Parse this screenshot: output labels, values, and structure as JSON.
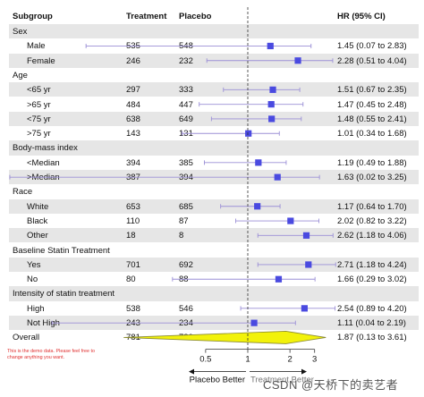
{
  "headers": {
    "subgroup": "Subgroup",
    "treatment": "Treatment",
    "placebo": "Placebo",
    "hr": "HR (95% CI)"
  },
  "chart_data": {
    "type": "forest",
    "xticks": [
      0.5,
      1,
      2,
      3
    ],
    "xlim": [
      0.27,
      4.2
    ],
    "reference_line": 1,
    "arrow_left_label": "Placebo Better",
    "arrow_right_label": "Treatment Better",
    "rows": [
      {
        "type": "group",
        "label": "Sex"
      },
      {
        "type": "row",
        "label": "Male",
        "treatment": "535",
        "placebo": "548",
        "hr": 1.45,
        "lo": 0.07,
        "hi": 2.83,
        "hr_text": "1.45 (0.07 to 2.83)"
      },
      {
        "type": "row",
        "label": "Female",
        "treatment": "246",
        "placebo": "232",
        "hr": 2.28,
        "lo": 0.51,
        "hi": 4.04,
        "hr_text": "2.28 (0.51 to 4.04)"
      },
      {
        "type": "group",
        "label": "Age"
      },
      {
        "type": "row",
        "label": "<65 yr",
        "treatment": "297",
        "placebo": "333",
        "hr": 1.51,
        "lo": 0.67,
        "hi": 2.35,
        "hr_text": "1.51 (0.67 to 2.35)"
      },
      {
        "type": "row",
        "label": ">65 yr",
        "treatment": "484",
        "placebo": "447",
        "hr": 1.47,
        "lo": 0.45,
        "hi": 2.48,
        "hr_text": "1.47 (0.45 to 2.48)"
      },
      {
        "type": "row",
        "label": "<75 yr",
        "treatment": "638",
        "placebo": "649",
        "hr": 1.48,
        "lo": 0.55,
        "hi": 2.41,
        "hr_text": "1.48 (0.55 to 2.41)"
      },
      {
        "type": "row",
        "label": ">75 yr",
        "treatment": "143",
        "placebo": "131",
        "hr": 1.01,
        "lo": 0.34,
        "hi": 1.68,
        "hr_text": "1.01 (0.34 to 1.68)"
      },
      {
        "type": "group",
        "label": "Body-mass index"
      },
      {
        "type": "row",
        "label": "<Median",
        "treatment": "394",
        "placebo": "385",
        "hr": 1.19,
        "lo": 0.49,
        "hi": 1.88,
        "hr_text": "1.19 (0.49 to 1.88)"
      },
      {
        "type": "row",
        "label": ">Median",
        "treatment": "387",
        "placebo": "394",
        "hr": 1.63,
        "lo": 0.02,
        "hi": 3.25,
        "hr_text": "1.63 (0.02 to 3.25)"
      },
      {
        "type": "group",
        "label": "Race"
      },
      {
        "type": "row",
        "label": "White",
        "treatment": "653",
        "placebo": "685",
        "hr": 1.17,
        "lo": 0.64,
        "hi": 1.7,
        "hr_text": "1.17 (0.64 to 1.70)"
      },
      {
        "type": "row",
        "label": "Black",
        "treatment": "110",
        "placebo": "87",
        "hr": 2.02,
        "lo": 0.82,
        "hi": 3.22,
        "hr_text": "2.02 (0.82 to 3.22)"
      },
      {
        "type": "row",
        "label": "Other",
        "treatment": "18",
        "placebo": "8",
        "hr": 2.62,
        "lo": 1.18,
        "hi": 4.06,
        "hr_text": "2.62 (1.18 to 4.06)"
      },
      {
        "type": "group",
        "label": "Baseline Statin Treatment"
      },
      {
        "type": "row",
        "label": "Yes",
        "treatment": "701",
        "placebo": "692",
        "hr": 2.71,
        "lo": 1.18,
        "hi": 4.24,
        "hr_text": "2.71 (1.18 to 4.24)"
      },
      {
        "type": "row",
        "label": "No",
        "treatment": "80",
        "placebo": "88",
        "hr": 1.66,
        "lo": 0.29,
        "hi": 3.02,
        "hr_text": "1.66 (0.29 to 3.02)"
      },
      {
        "type": "group",
        "label": "Intensity of statin treatment"
      },
      {
        "type": "row",
        "label": "High",
        "treatment": "538",
        "placebo": "546",
        "hr": 2.54,
        "lo": 0.89,
        "hi": 4.2,
        "hr_text": "2.54 (0.89 to 4.20)"
      },
      {
        "type": "row",
        "label": "Not High",
        "treatment": "243",
        "placebo": "234",
        "hr": 1.11,
        "lo": 0.04,
        "hi": 2.19,
        "hr_text": "1.11 (0.04 to 2.19)"
      },
      {
        "type": "overall",
        "label": "Overall",
        "treatment": "781",
        "placebo": "780",
        "hr": 1.87,
        "lo": 0.13,
        "hi": 3.61,
        "hr_text": "1.87 (0.13 to 3.61)"
      }
    ]
  },
  "note": "This is the demo data. Please feel free to change anything you want.",
  "watermark": "CSDN @天桥下的卖艺者",
  "colors": {
    "ci_line": "#9b8fd6",
    "box": "#4a4ae0",
    "diamond_fill": "#f2f20a",
    "diamond_stroke": "#8a8a30",
    "band": "#e6e6e6",
    "note": "#e03030"
  }
}
